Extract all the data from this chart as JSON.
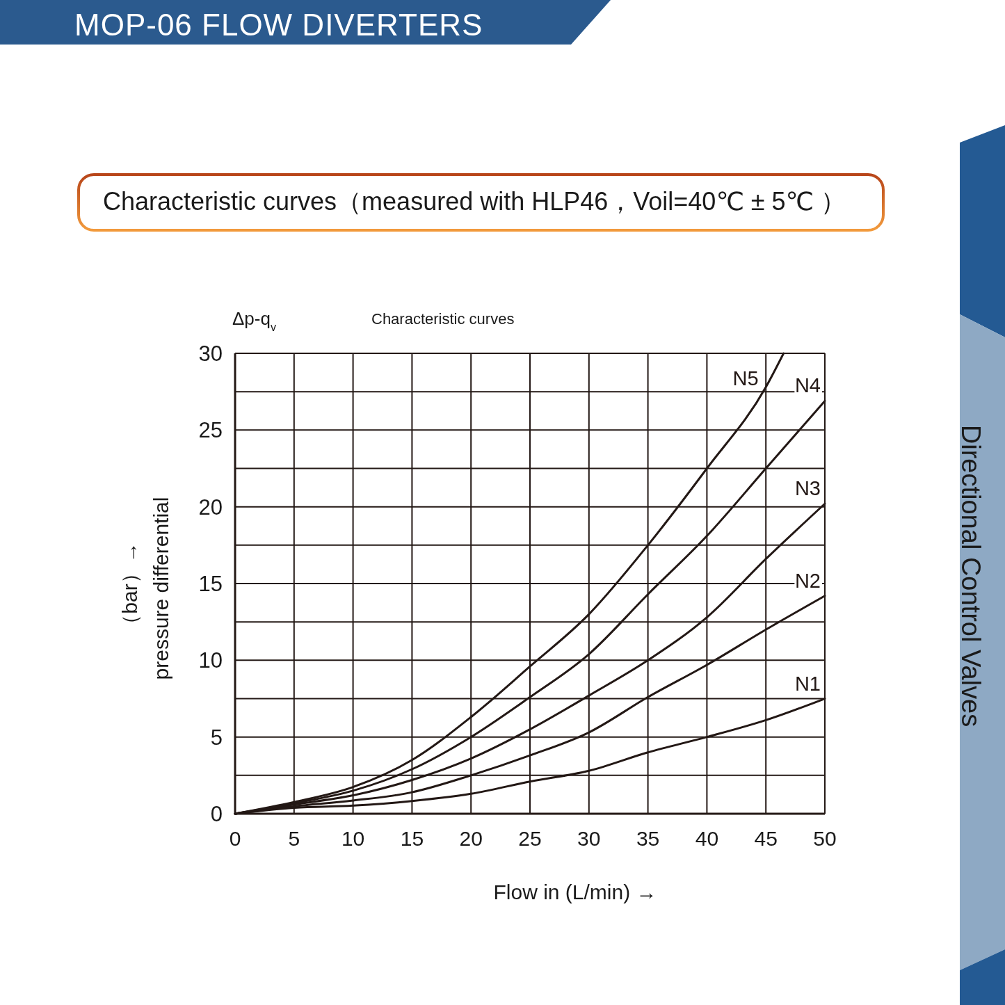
{
  "chart_data": {
    "type": "line",
    "title": "MOP-06 FLOW DIVERTERS",
    "subtitle": "Characteristic curves（measured with HLP46，Voil=40℃ ± 5℃ ）",
    "xlabel": "Flow in (L/min) →",
    "ylabel": "pressure differential\n（bar）→",
    "annotations": [
      "Δp-q$_{v}$",
      "Characteristic curves",
      "Directional Control Valves"
    ],
    "x": [
      0,
      5,
      10,
      15,
      20,
      25,
      30,
      35,
      40,
      45,
      50
    ],
    "xlim": [
      0,
      50
    ],
    "xticks": [
      0,
      5,
      10,
      15,
      20,
      25,
      30,
      35,
      40,
      45,
      50
    ],
    "ylim": [
      0,
      30
    ],
    "yticks": [
      0,
      {
        "value": 2.5,
        "label": null
      },
      5,
      {
        "value": 7.5,
        "label": null
      },
      10,
      {
        "value": 12.5,
        "label": null
      },
      15,
      {
        "value": 17.5,
        "label": null
      },
      20,
      {
        "value": 22.5,
        "label": null
      },
      25,
      {
        "value": 27.5,
        "label": null
      },
      30
    ],
    "grid": true,
    "series": [
      {
        "name": "N1",
        "color": "#231815",
        "values": [
          0,
          0.38,
          0.53,
          0.83,
          1.3,
          2.1,
          2.8,
          4.0,
          5.0,
          6.1,
          7.5
        ]
      },
      {
        "name": "N2",
        "color": "#231815",
        "values": [
          0,
          0.48,
          0.86,
          1.4,
          2.5,
          3.8,
          5.3,
          7.6,
          9.7,
          12.0,
          14.2
        ]
      },
      {
        "name": "N3",
        "color": "#231815",
        "values": [
          0,
          0.6,
          1.2,
          2.2,
          3.6,
          5.5,
          7.7,
          10.0,
          12.8,
          16.6,
          20.2
        ]
      },
      {
        "name": "N4",
        "color": "#231815",
        "values": [
          0,
          0.68,
          1.5,
          2.9,
          5.0,
          7.6,
          10.4,
          14.3,
          18.1,
          22.5,
          26.9
        ]
      },
      {
        "name": "N5",
        "color": "#231815",
        "x": [
          0,
          5,
          10,
          15,
          20,
          25,
          30,
          35,
          40,
          45,
          46.5
        ],
        "values": [
          0,
          0.76,
          1.74,
          3.5,
          6.3,
          9.6,
          13.0,
          17.5,
          22.5,
          27.8,
          30
        ]
      }
    ]
  }
}
